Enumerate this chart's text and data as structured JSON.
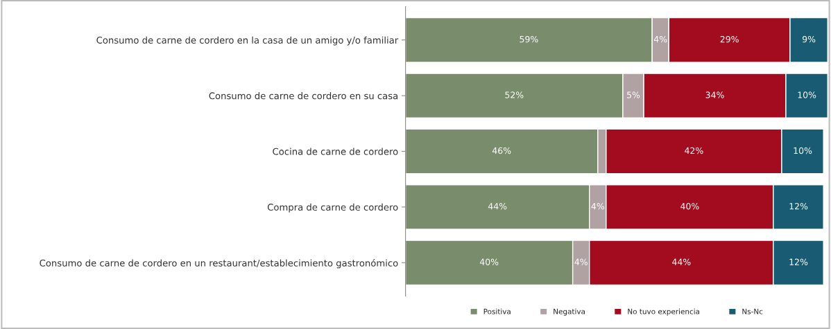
{
  "chart_data": {
    "type": "bar",
    "orientation": "horizontal",
    "stacked": true,
    "categories": [
      "Consumo de carne de cordero en la casa de un amigo y/o familiar",
      "Consumo de carne de cordero en su casa",
      "Cocina de carne de cordero",
      "Compra de carne de cordero",
      "Consumo de carne de cordero en un restaurant/establecimiento gastronómico"
    ],
    "series": [
      {
        "name": "Positiva",
        "color": "#798c6b",
        "values": [
          59,
          52,
          46,
          44,
          40
        ],
        "value_labels": [
          "59%",
          "52%",
          "46%",
          "44%",
          "40%"
        ]
      },
      {
        "name": "Negativa",
        "color": "#b0a2a2",
        "values": [
          4,
          5,
          2,
          4,
          4
        ],
        "value_labels": [
          "4%",
          "5%",
          null,
          "4%",
          "4%"
        ]
      },
      {
        "name": "No tuvo experiencia",
        "color": "#a30c1e",
        "values": [
          29,
          34,
          42,
          40,
          44
        ],
        "value_labels": [
          "29%",
          "34%",
          "42%",
          "40%",
          "44%"
        ]
      },
      {
        "name": "Ns-Nc",
        "color": "#195b72",
        "values": [
          9,
          10,
          10,
          12,
          12
        ],
        "value_labels": [
          "9%",
          "10%",
          "10%",
          "12%",
          "12%"
        ]
      }
    ],
    "legend": "bottom",
    "grid": false
  }
}
